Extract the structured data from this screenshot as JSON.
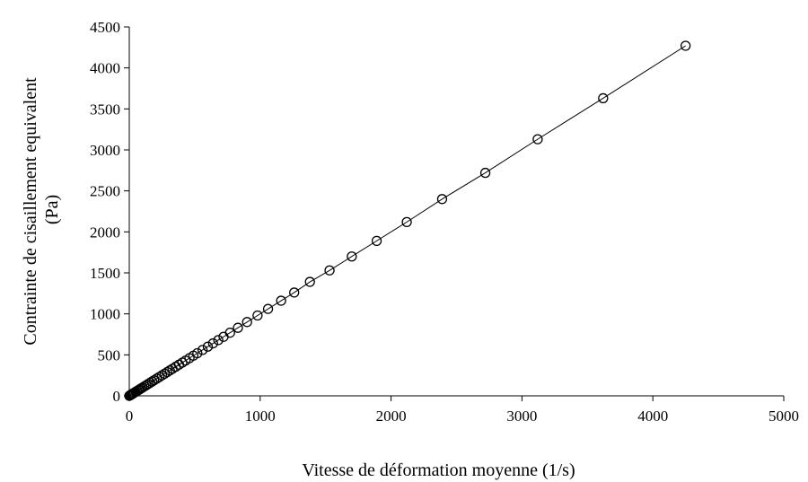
{
  "chart_data": {
    "type": "scatter",
    "title": "",
    "xlabel": "Vitesse de déformation moyenne (1/s)",
    "ylabel_line1": "Contrainte de cisaillement equivalent",
    "ylabel_line2": "(Pa)",
    "xlim": [
      0,
      5000
    ],
    "ylim": [
      0,
      4500
    ],
    "xticks": [
      0,
      1000,
      2000,
      3000,
      4000,
      5000
    ],
    "yticks": [
      0,
      500,
      1000,
      1500,
      2000,
      2500,
      3000,
      3500,
      4000,
      4500
    ],
    "grid": false,
    "legend": "none",
    "marker": "open-circle",
    "series": [
      {
        "x": [
          0,
          5,
          10,
          15,
          20,
          25,
          30,
          40,
          50,
          60,
          70,
          80,
          90,
          100,
          115,
          130,
          145,
          160,
          175,
          190,
          210,
          230,
          250,
          270,
          290,
          310,
          330,
          355,
          380,
          405,
          430,
          460,
          490,
          520,
          560,
          600,
          640,
          680,
          720,
          770,
          830,
          900,
          980,
          1060,
          1160,
          1260,
          1380,
          1530,
          1700,
          1890,
          2120,
          2390,
          2720,
          3120,
          3620,
          4250
        ],
        "y": [
          0,
          5,
          10,
          15,
          20,
          25,
          30,
          40,
          50,
          60,
          70,
          80,
          90,
          100,
          115,
          130,
          145,
          160,
          175,
          190,
          210,
          230,
          250,
          270,
          290,
          310,
          330,
          355,
          380,
          405,
          430,
          460,
          490,
          520,
          560,
          600,
          640,
          680,
          720,
          770,
          830,
          900,
          980,
          1060,
          1160,
          1260,
          1390,
          1530,
          1700,
          1890,
          2120,
          2400,
          2720,
          3130,
          3630,
          4270
        ]
      }
    ]
  }
}
